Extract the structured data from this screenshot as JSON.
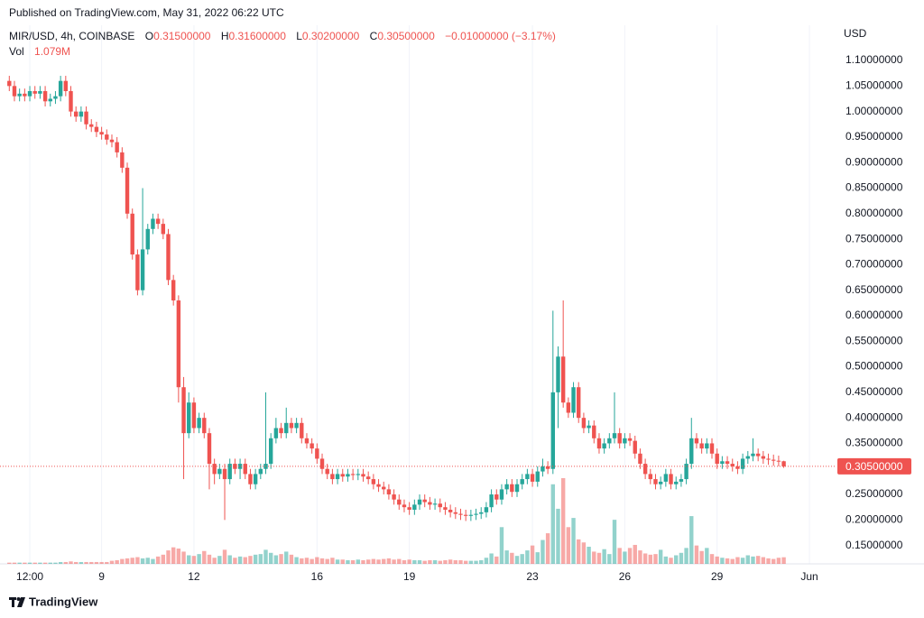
{
  "header": {
    "published": "Published on TradingView.com, May 31, 2022 06:22 UTC",
    "symbol": "MIR/USD, 4h, COINBASE",
    "ohlc": [
      {
        "label": "O",
        "value": "0.31500000"
      },
      {
        "label": "H",
        "value": "0.31600000"
      },
      {
        "label": "L",
        "value": "0.30200000"
      },
      {
        "label": "C",
        "value": "0.30500000"
      }
    ],
    "change": "−0.01000000 (−3.17%)",
    "vol_label": "Vol",
    "vol_value": "1.079M"
  },
  "chart_data": {
    "type": "candlestick",
    "y_axis_label": "USD",
    "up_color": "#26a69a",
    "down_color": "#ef5350",
    "grid": true,
    "ylim": [
      0.114,
      1.169
    ],
    "yticks": [
      {
        "value": 0.15,
        "label": "0.15000000"
      },
      {
        "value": 0.2,
        "label": "0.20000000"
      },
      {
        "value": 0.25,
        "label": "0.25000000"
      },
      {
        "value": 0.3,
        "label": "0.30000000"
      },
      {
        "value": 0.35,
        "label": "0.35000000"
      },
      {
        "value": 0.4,
        "label": "0.40000000"
      },
      {
        "value": 0.45,
        "label": "0.45000000"
      },
      {
        "value": 0.5,
        "label": "0.50000000"
      },
      {
        "value": 0.55,
        "label": "0.55000000"
      },
      {
        "value": 0.6,
        "label": "0.60000000"
      },
      {
        "value": 0.65,
        "label": "0.65000000"
      },
      {
        "value": 0.7,
        "label": "0.70000000"
      },
      {
        "value": 0.75,
        "label": "0.75000000"
      },
      {
        "value": 0.8,
        "label": "0.80000000"
      },
      {
        "value": 0.85,
        "label": "0.85000000"
      },
      {
        "value": 0.9,
        "label": "0.90000000"
      },
      {
        "value": 0.95,
        "label": "0.95000000"
      },
      {
        "value": 1.0,
        "label": "1.00000000"
      },
      {
        "value": 1.05,
        "label": "1.05000000"
      },
      {
        "value": 1.1,
        "label": "1.10000000"
      }
    ],
    "last_price": {
      "value": 0.305,
      "label": "0.30500000"
    },
    "categories": [
      null,
      null,
      null,
      null,
      "12:00",
      null,
      null,
      null,
      null,
      null,
      null,
      null,
      null,
      null,
      null,
      null,
      null,
      null,
      "9",
      null,
      null,
      null,
      null,
      null,
      null,
      null,
      null,
      null,
      null,
      null,
      null,
      null,
      null,
      null,
      null,
      null,
      "12",
      null,
      null,
      null,
      null,
      null,
      null,
      null,
      null,
      null,
      null,
      null,
      null,
      null,
      null,
      null,
      null,
      null,
      null,
      null,
      null,
      null,
      null,
      null,
      "16",
      null,
      null,
      null,
      null,
      null,
      null,
      null,
      null,
      null,
      null,
      null,
      null,
      null,
      null,
      null,
      null,
      null,
      "19",
      null,
      null,
      null,
      null,
      null,
      null,
      null,
      null,
      null,
      null,
      null,
      null,
      null,
      null,
      null,
      null,
      null,
      null,
      null,
      null,
      null,
      null,
      null,
      "23",
      null,
      null,
      null,
      null,
      null,
      null,
      null,
      null,
      null,
      null,
      null,
      null,
      null,
      null,
      null,
      null,
      null,
      "26",
      null,
      null,
      null,
      null,
      null,
      null,
      null,
      null,
      null,
      null,
      null,
      null,
      null,
      null,
      null,
      null,
      null,
      "29",
      null,
      null,
      null,
      null,
      null,
      null,
      null,
      null,
      null,
      null,
      null,
      null,
      null,
      null,
      null,
      null,
      null,
      "Jun"
    ],
    "open": [
      1.06,
      1.05,
      1.03,
      1.035,
      1.03,
      1.04,
      1.035,
      1.04,
      1.02,
      1.025,
      1.03,
      1.06,
      1.04,
      1.0,
      0.99,
      1.0,
      0.975,
      0.97,
      0.96,
      0.955,
      0.945,
      0.94,
      0.92,
      0.89,
      0.8,
      0.72,
      0.65,
      0.73,
      0.77,
      0.79,
      0.78,
      0.76,
      0.67,
      0.63,
      0.46,
      0.37,
      0.43,
      0.38,
      0.4,
      0.37,
      0.31,
      0.29,
      0.3,
      0.28,
      0.31,
      0.3,
      0.31,
      0.29,
      0.27,
      0.29,
      0.3,
      0.31,
      0.36,
      0.38,
      0.37,
      0.39,
      0.38,
      0.39,
      0.36,
      0.35,
      0.34,
      0.32,
      0.3,
      0.29,
      0.28,
      0.29,
      0.285,
      0.29,
      0.288,
      0.29,
      0.285,
      0.28,
      0.27,
      0.265,
      0.26,
      0.25,
      0.24,
      0.23,
      0.225,
      0.22,
      0.23,
      0.24,
      0.235,
      0.23,
      0.232,
      0.225,
      0.22,
      0.215,
      0.212,
      0.21,
      0.208,
      0.21,
      0.212,
      0.215,
      0.225,
      0.25,
      0.24,
      0.26,
      0.27,
      0.255,
      0.27,
      0.28,
      0.29,
      0.275,
      0.295,
      0.305,
      0.3,
      0.45,
      0.52,
      0.43,
      0.41,
      0.46,
      0.4,
      0.38,
      0.385,
      0.36,
      0.34,
      0.35,
      0.36,
      0.37,
      0.35,
      0.36,
      0.355,
      0.33,
      0.31,
      0.29,
      0.28,
      0.27,
      0.275,
      0.29,
      0.27,
      0.275,
      0.28,
      0.31,
      0.36,
      0.35,
      0.34,
      0.35,
      0.33,
      0.31,
      0.315,
      0.31,
      0.305,
      0.3,
      0.32,
      0.325,
      0.33,
      0.325,
      0.32,
      0.318,
      0.316,
      0.315,
      null,
      null,
      null,
      null,
      null
    ],
    "high": [
      1.07,
      1.06,
      1.045,
      1.045,
      1.05,
      1.05,
      1.05,
      1.05,
      1.035,
      1.04,
      1.07,
      1.07,
      1.05,
      1.01,
      1.01,
      1.01,
      0.985,
      0.98,
      0.97,
      0.965,
      0.955,
      0.95,
      0.93,
      0.9,
      0.81,
      0.73,
      0.85,
      0.78,
      0.8,
      0.8,
      0.79,
      0.77,
      0.68,
      0.64,
      0.48,
      0.45,
      0.44,
      0.41,
      0.41,
      0.38,
      0.32,
      0.31,
      0.31,
      0.32,
      0.32,
      0.32,
      0.32,
      0.3,
      0.3,
      0.31,
      0.45,
      0.37,
      0.4,
      0.39,
      0.42,
      0.4,
      0.4,
      0.4,
      0.37,
      0.36,
      0.35,
      0.33,
      0.31,
      0.3,
      0.3,
      0.3,
      0.3,
      0.3,
      0.3,
      0.3,
      0.295,
      0.29,
      0.28,
      0.275,
      0.27,
      0.26,
      0.25,
      0.24,
      0.235,
      0.24,
      0.25,
      0.25,
      0.245,
      0.242,
      0.242,
      0.235,
      0.23,
      0.225,
      0.222,
      0.22,
      0.22,
      0.222,
      0.225,
      0.235,
      0.26,
      0.26,
      0.27,
      0.28,
      0.28,
      0.28,
      0.29,
      0.3,
      0.3,
      0.305,
      0.32,
      0.315,
      0.61,
      0.54,
      0.63,
      0.44,
      0.47,
      0.47,
      0.41,
      0.395,
      0.395,
      0.37,
      0.36,
      0.37,
      0.45,
      0.38,
      0.37,
      0.37,
      0.365,
      0.34,
      0.32,
      0.3,
      0.29,
      0.285,
      0.3,
      0.3,
      0.285,
      0.29,
      0.32,
      0.4,
      0.37,
      0.36,
      0.36,
      0.36,
      0.34,
      0.325,
      0.325,
      0.32,
      0.315,
      0.33,
      0.335,
      0.36,
      0.34,
      0.335,
      0.33,
      0.328,
      0.326,
      0.316,
      null,
      null,
      null,
      null,
      null
    ],
    "low": [
      1.04,
      1.02,
      1.02,
      1.02,
      1.02,
      1.025,
      1.025,
      1.01,
      1.01,
      1.015,
      1.02,
      1.03,
      0.99,
      0.98,
      0.98,
      0.965,
      0.96,
      0.95,
      0.945,
      0.935,
      0.93,
      0.91,
      0.88,
      0.79,
      0.71,
      0.64,
      0.64,
      0.72,
      0.76,
      0.77,
      0.75,
      0.66,
      0.62,
      0.43,
      0.28,
      0.36,
      0.37,
      0.37,
      0.36,
      0.26,
      0.27,
      0.28,
      0.2,
      0.27,
      0.29,
      0.28,
      0.28,
      0.26,
      0.26,
      0.28,
      0.29,
      0.3,
      0.35,
      0.36,
      0.36,
      0.37,
      0.37,
      0.35,
      0.34,
      0.33,
      0.31,
      0.29,
      0.28,
      0.27,
      0.27,
      0.275,
      0.275,
      0.278,
      0.278,
      0.275,
      0.27,
      0.26,
      0.255,
      0.25,
      0.24,
      0.23,
      0.22,
      0.215,
      0.21,
      0.21,
      0.22,
      0.225,
      0.22,
      0.22,
      0.215,
      0.21,
      0.205,
      0.202,
      0.2,
      0.198,
      0.198,
      0.2,
      0.202,
      0.205,
      0.215,
      0.23,
      0.23,
      0.25,
      0.245,
      0.245,
      0.26,
      0.27,
      0.265,
      0.265,
      0.285,
      0.29,
      0.29,
      0.38,
      0.42,
      0.4,
      0.4,
      0.39,
      0.37,
      0.37,
      0.35,
      0.33,
      0.33,
      0.34,
      0.35,
      0.34,
      0.34,
      0.345,
      0.32,
      0.3,
      0.28,
      0.27,
      0.26,
      0.26,
      0.265,
      0.26,
      0.26,
      0.265,
      0.27,
      0.3,
      0.34,
      0.33,
      0.33,
      0.32,
      0.3,
      0.3,
      0.3,
      0.295,
      0.29,
      0.29,
      0.31,
      0.315,
      0.315,
      0.31,
      0.308,
      0.306,
      0.305,
      0.302,
      null,
      null,
      null,
      null,
      null
    ],
    "close": [
      1.05,
      1.03,
      1.035,
      1.03,
      1.04,
      1.035,
      1.04,
      1.02,
      1.025,
      1.03,
      1.06,
      1.04,
      1.0,
      0.99,
      1.0,
      0.975,
      0.97,
      0.96,
      0.955,
      0.945,
      0.94,
      0.92,
      0.89,
      0.8,
      0.72,
      0.65,
      0.73,
      0.77,
      0.79,
      0.78,
      0.76,
      0.67,
      0.63,
      0.46,
      0.37,
      0.43,
      0.38,
      0.4,
      0.37,
      0.31,
      0.29,
      0.3,
      0.28,
      0.31,
      0.3,
      0.31,
      0.29,
      0.27,
      0.29,
      0.3,
      0.31,
      0.36,
      0.38,
      0.37,
      0.39,
      0.38,
      0.39,
      0.36,
      0.35,
      0.34,
      0.32,
      0.3,
      0.29,
      0.28,
      0.29,
      0.285,
      0.29,
      0.288,
      0.29,
      0.285,
      0.28,
      0.27,
      0.265,
      0.26,
      0.25,
      0.24,
      0.23,
      0.225,
      0.22,
      0.23,
      0.24,
      0.235,
      0.23,
      0.232,
      0.225,
      0.22,
      0.215,
      0.212,
      0.21,
      0.208,
      0.21,
      0.212,
      0.215,
      0.225,
      0.25,
      0.24,
      0.26,
      0.27,
      0.255,
      0.27,
      0.28,
      0.29,
      0.275,
      0.295,
      0.305,
      0.3,
      0.45,
      0.52,
      0.43,
      0.41,
      0.46,
      0.4,
      0.38,
      0.385,
      0.36,
      0.34,
      0.35,
      0.36,
      0.37,
      0.35,
      0.36,
      0.355,
      0.33,
      0.31,
      0.29,
      0.28,
      0.27,
      0.275,
      0.29,
      0.27,
      0.275,
      0.28,
      0.31,
      0.36,
      0.35,
      0.34,
      0.35,
      0.33,
      0.31,
      0.315,
      0.31,
      0.305,
      0.3,
      0.32,
      0.325,
      0.33,
      0.325,
      0.32,
      0.318,
      0.316,
      0.315,
      0.305,
      null,
      null,
      null,
      null,
      null
    ],
    "volume": [
      0.2,
      0.2,
      0.2,
      0.2,
      0.2,
      0.2,
      0.2,
      0.2,
      0.2,
      0.2,
      0.3,
      0.3,
      0.4,
      0.3,
      0.3,
      0.3,
      0.3,
      0.3,
      0.3,
      0.3,
      0.5,
      0.6,
      0.8,
      0.9,
      1.0,
      1.1,
      0.9,
      1.0,
      0.8,
      1.2,
      1.5,
      2.2,
      2.7,
      2.5,
      2.0,
      1.4,
      1.3,
      1.6,
      2.1,
      1.5,
      1.0,
      1.3,
      2.3,
      1.4,
      1.0,
      1.2,
      1.1,
      1.3,
      1.5,
      1.6,
      2.3,
      1.8,
      1.4,
      1.6,
      2.0,
      1.5,
      1.1,
      0.9,
      1.0,
      0.8,
      1.1,
      0.9,
      0.8,
      1.0,
      0.7,
      0.7,
      0.6,
      0.6,
      0.7,
      0.6,
      0.7,
      0.8,
      0.7,
      0.8,
      0.9,
      0.7,
      0.8,
      0.6,
      0.7,
      0.6,
      0.6,
      0.5,
      0.6,
      0.6,
      0.5,
      0.6,
      0.7,
      0.6,
      0.6,
      0.5,
      0.5,
      0.5,
      0.6,
      1.0,
      1.7,
      1.2,
      6.0,
      2.2,
      1.8,
      1.3,
      1.6,
      2.2,
      3.0,
      1.9,
      3.9,
      5.0,
      13.0,
      9.0,
      14.0,
      6.0,
      7.5,
      4.0,
      3.5,
      2.8,
      2.0,
      1.8,
      2.4,
      1.6,
      7.2,
      2.6,
      2.0,
      2.6,
      3.1,
      2.2,
      1.7,
      1.5,
      1.6,
      2.3,
      1.2,
      1.0,
      1.4,
      1.8,
      2.6,
      7.8,
      3.0,
      2.1,
      2.6,
      1.6,
      1.2,
      1.0,
      0.9,
      0.8,
      1.1,
      1.0,
      1.4,
      1.2,
      1.3,
      1.1,
      0.9,
      0.8,
      1.0,
      1.079,
      null,
      null,
      null,
      null,
      null
    ]
  },
  "footer": {
    "brand": "TradingView"
  }
}
